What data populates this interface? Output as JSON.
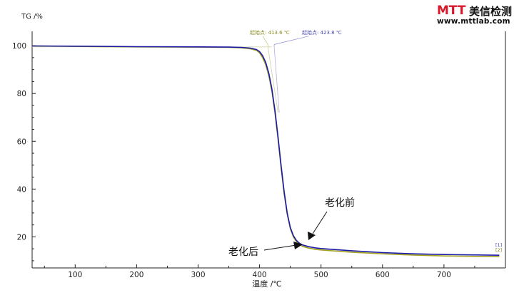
{
  "logo": {
    "mark": "MTT",
    "name": "美信检测",
    "url": "www.mttlab.com"
  },
  "colors": {
    "axis": "#222222",
    "series_before": "#1a1aa8",
    "series_after": "#a4a020",
    "onset_after_text": "#8a8a20",
    "onset_before_text": "#4a4ab0"
  },
  "chart_data": {
    "type": "line",
    "ylabel": "TG /%",
    "xlabel": "温度 /℃",
    "xlim": [
      30,
      800
    ],
    "ylim": [
      7,
      106
    ],
    "xticks": [
      100,
      200,
      300,
      400,
      500,
      600,
      700
    ],
    "yticks": [
      20,
      40,
      60,
      80,
      100
    ],
    "series": [
      {
        "name": "老化前",
        "key": "before",
        "onset_label": "起始点: 423.8 ℃",
        "end_marker": "[1]",
        "x": [
          30,
          100,
          200,
          300,
          350,
          370,
          385,
          395,
          400,
          405,
          410,
          415,
          420,
          425,
          430,
          435,
          440,
          445,
          450,
          455,
          460,
          465,
          470,
          480,
          490,
          500,
          550,
          600,
          650,
          700,
          790
        ],
        "y": [
          99.9,
          99.8,
          99.6,
          99.5,
          99.4,
          99.3,
          99.0,
          98.4,
          97.5,
          95.8,
          93.0,
          88.5,
          82.0,
          73.0,
          62.0,
          50.0,
          39.0,
          30.0,
          24.0,
          20.5,
          18.5,
          17.3,
          16.6,
          15.9,
          15.4,
          15.1,
          14.2,
          13.4,
          12.9,
          12.6,
          12.3
        ]
      },
      {
        "name": "老化后",
        "key": "after",
        "onset_label": "起始点: 413.6 ℃",
        "end_marker": "[2]",
        "x": [
          30,
          100,
          200,
          300,
          350,
          370,
          385,
          395,
          400,
          405,
          410,
          415,
          420,
          425,
          430,
          435,
          440,
          445,
          450,
          455,
          460,
          465,
          470,
          480,
          490,
          500,
          550,
          600,
          650,
          700,
          790
        ],
        "y": [
          99.9,
          99.7,
          99.5,
          99.4,
          99.3,
          99.1,
          98.7,
          98.0,
          97.0,
          95.0,
          92.0,
          87.5,
          81.0,
          72.0,
          61.0,
          49.0,
          38.0,
          29.5,
          23.5,
          20.0,
          18.0,
          16.8,
          16.0,
          15.3,
          14.8,
          14.5,
          13.6,
          12.9,
          12.4,
          12.0,
          11.7
        ]
      }
    ],
    "annotations": [
      {
        "text": "老化前",
        "series": "before"
      },
      {
        "text": "老化后",
        "series": "after"
      }
    ]
  }
}
